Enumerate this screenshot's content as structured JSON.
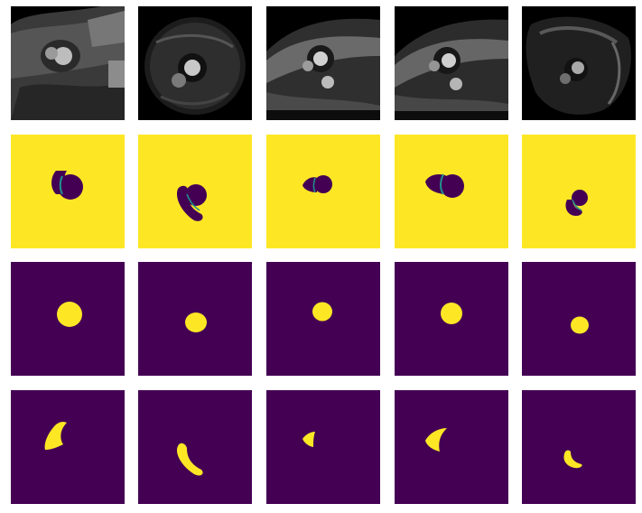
{
  "colors": {
    "viridis_low": "#440154",
    "viridis_high": "#fde725",
    "viridis_mid": "#21918c",
    "mri_background": "#000000"
  },
  "grid": {
    "columns": 5,
    "rows": [
      {
        "name": "mri-scan",
        "kind": "grayscale-image"
      },
      {
        "name": "background-mask",
        "kind": "viridis-mask"
      },
      {
        "name": "lv-cavity-mask",
        "kind": "viridis-mask"
      },
      {
        "name": "rv-cavity-mask",
        "kind": "viridis-mask"
      }
    ]
  }
}
